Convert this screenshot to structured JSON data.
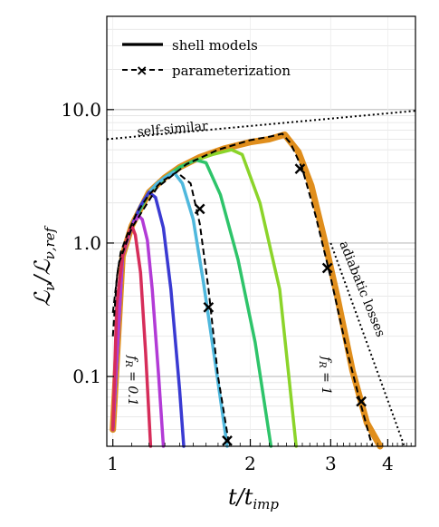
{
  "chart_data": {
    "type": "line",
    "xlabel_main": "t/t",
    "xlabel_sub": "imp",
    "ylabel_main": "ℒ",
    "ylabel_sub1": "ν",
    "ylabel_mid": "/ℒ",
    "ylabel_sub2": "ν,ref",
    "x_scale": "log",
    "y_scale": "log",
    "xlim": [
      0.97,
      4.6
    ],
    "ylim": [
      0.03,
      50
    ],
    "x_ticks": [
      1,
      2,
      3,
      4
    ],
    "x_tick_labels": [
      "1",
      "2",
      "3",
      "4"
    ],
    "y_ticks": [
      0.1,
      1.0,
      10.0
    ],
    "y_tick_labels": [
      "0.1",
      "1.0",
      "10.0"
    ],
    "grid": true,
    "legend_position": "top-left",
    "legend": [
      {
        "label": "shell models",
        "style": "solid"
      },
      {
        "label": "parameterization",
        "style": "dashed-x"
      }
    ],
    "annotations": {
      "self_similar": "self-similar",
      "adiabatic": "adiabatic losses",
      "fr_low": "f_R = 0.1",
      "fr_high": "f_R = 1"
    },
    "self_similar_line": {
      "x": [
        0.97,
        4.6
      ],
      "y": [
        6.0,
        9.8
      ]
    },
    "adiabatic_line": {
      "x": [
        3.0,
        4.35
      ],
      "y": [
        1.0,
        0.03
      ]
    },
    "series": [
      {
        "color": "#d62d5a",
        "x": [
          1.0,
          1.02,
          1.05,
          1.08,
          1.1,
          1.12,
          1.15,
          1.18,
          1.21
        ],
        "y": [
          0.04,
          0.35,
          0.8,
          1.15,
          1.35,
          1.15,
          0.6,
          0.15,
          0.03
        ]
      },
      {
        "color": "#b23bd6",
        "x": [
          1.0,
          1.05,
          1.1,
          1.14,
          1.16,
          1.19,
          1.22,
          1.26,
          1.29
        ],
        "y": [
          0.04,
          0.8,
          1.35,
          1.6,
          1.5,
          1.05,
          0.45,
          0.1,
          0.03
        ]
      },
      {
        "color": "#3a3ad2",
        "x": [
          1.0,
          1.05,
          1.1,
          1.15,
          1.2,
          1.24,
          1.29,
          1.34,
          1.4,
          1.43
        ],
        "y": [
          0.04,
          0.8,
          1.35,
          1.9,
          2.4,
          2.2,
          1.3,
          0.45,
          0.08,
          0.03
        ]
      },
      {
        "color": "#4fb8dd",
        "x": [
          1.0,
          1.05,
          1.1,
          1.15,
          1.2,
          1.25,
          1.3,
          1.36,
          1.42,
          1.5,
          1.58,
          1.68,
          1.78
        ],
        "y": [
          0.04,
          0.8,
          1.35,
          1.9,
          2.4,
          2.8,
          3.1,
          3.4,
          2.8,
          1.5,
          0.5,
          0.12,
          0.03
        ]
      },
      {
        "color": "#2ec46a",
        "x": [
          1.0,
          1.05,
          1.1,
          1.2,
          1.3,
          1.4,
          1.52,
          1.6,
          1.72,
          1.88,
          2.05,
          2.22
        ],
        "y": [
          0.04,
          0.8,
          1.35,
          2.4,
          3.1,
          3.7,
          4.2,
          4.0,
          2.3,
          0.75,
          0.18,
          0.03
        ]
      },
      {
        "color": "#8bd42a",
        "x": [
          1.0,
          1.05,
          1.1,
          1.2,
          1.3,
          1.4,
          1.52,
          1.65,
          1.82,
          1.92,
          2.1,
          2.32,
          2.52
        ],
        "y": [
          0.04,
          0.8,
          1.35,
          2.4,
          3.1,
          3.7,
          4.2,
          4.6,
          5.0,
          4.6,
          2.0,
          0.45,
          0.03
        ]
      },
      {
        "color": "#e08e1c",
        "x": [
          1.0,
          1.05,
          1.1,
          1.2,
          1.3,
          1.4,
          1.55,
          1.75,
          2.0,
          2.2,
          2.38,
          2.55,
          2.72,
          2.9,
          3.1,
          3.35,
          3.6,
          3.85
        ],
        "y": [
          0.04,
          0.8,
          1.35,
          2.4,
          3.1,
          3.7,
          4.4,
          5.1,
          5.7,
          6.0,
          6.5,
          4.8,
          2.7,
          1.1,
          0.4,
          0.11,
          0.045,
          0.03
        ]
      }
    ],
    "parameterization": [
      {
        "x": [
          1.0,
          1.02,
          1.04,
          1.08,
          1.13,
          1.2,
          1.28,
          1.38,
          1.48,
          1.55,
          1.62,
          1.7,
          1.8
        ],
        "y": [
          0.2,
          0.55,
          0.85,
          1.2,
          1.7,
          2.3,
          2.9,
          3.4,
          2.8,
          1.4,
          0.45,
          0.1,
          0.03
        ],
        "markers_x": [
          1.55,
          1.62,
          1.78
        ],
        "markers_y": [
          1.8,
          0.33,
          0.033
        ]
      },
      {
        "x": [
          1.0,
          1.03,
          1.1,
          1.25,
          1.45,
          1.7,
          2.0,
          2.22,
          2.35,
          2.45,
          2.6,
          2.78,
          3.0,
          3.25,
          3.5,
          3.7
        ],
        "y": [
          0.3,
          0.7,
          1.3,
          2.6,
          3.9,
          5.0,
          5.9,
          6.3,
          6.6,
          5.6,
          3.6,
          1.6,
          0.55,
          0.16,
          0.06,
          0.03
        ],
        "markers_x": [
          2.57,
          2.95,
          3.5
        ],
        "markers_y": [
          3.6,
          0.65,
          0.065
        ]
      }
    ]
  }
}
